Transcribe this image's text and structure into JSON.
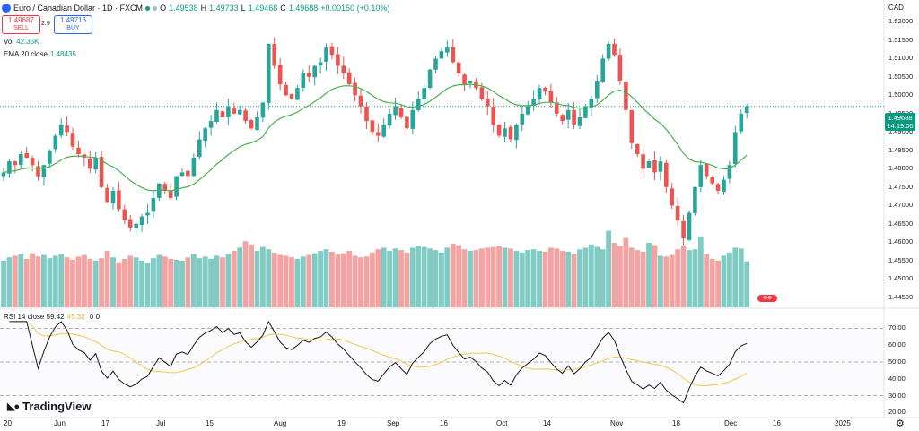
{
  "header": {
    "symbol": "Euro / Canadian Dollar · 1D · FXCM",
    "open_label": "O",
    "open": "1.49538",
    "high_label": "H",
    "high": "1.49733",
    "low_label": "L",
    "low": "1.49468",
    "close_label": "C",
    "close": "1.49688",
    "change": "+0.00150 (+0.10%)"
  },
  "trade": {
    "sell_price": "1.49687",
    "sell_label": "SELL",
    "spread": "2.9",
    "buy_price": "1.49716",
    "buy_label": "BUY"
  },
  "indicators": {
    "vol_label": "Vol",
    "vol_value": "42.35K",
    "ema_label": "EMA 20 close",
    "ema_value": "1.48435",
    "rsi_label": "RSI 14 close",
    "rsi_value": "59.42",
    "rsi_ma_value": "45.32",
    "rsi_extra": "0 0"
  },
  "price_axis": {
    "currency": "CAD",
    "ticks": [
      "1.52000",
      "1.51500",
      "1.51000",
      "1.50500",
      "1.50000",
      "1.49500",
      "1.49000",
      "1.48500",
      "1.48000",
      "1.47500",
      "1.47000",
      "1.46500",
      "1.46000",
      "1.45500",
      "1.45000",
      "1.44500"
    ],
    "last_price": "1.49688",
    "countdown": "14:19:00"
  },
  "rsi_axis": {
    "ticks": [
      "70.00",
      "60.00",
      "50.00",
      "40.00",
      "30.00",
      "20.00"
    ]
  },
  "time_axis": {
    "labels": [
      "20",
      "Jun",
      "17",
      "Jul",
      "15",
      "Aug",
      "19",
      "Sep",
      "16",
      "Oct",
      "14",
      "Nov",
      "18",
      "Dec",
      "16",
      "2025"
    ]
  },
  "branding": {
    "name": "TradingView"
  },
  "colors": {
    "up": "#26a69a",
    "down": "#ef5350",
    "ema": "#4caf50",
    "rsi": "#131722",
    "rsi_ma": "#f2c94c",
    "vol_up": "#80cbc4",
    "vol_down": "#f4a3a3"
  },
  "chart_data": {
    "type": "candlestick",
    "title": "Euro / Canadian Dollar · 1D · FXCM",
    "ylim": [
      1.443,
      1.524
    ],
    "ema_period": 20,
    "closes": [
      1.479,
      1.482,
      1.481,
      1.484,
      1.483,
      1.481,
      1.478,
      1.481,
      1.485,
      1.489,
      1.492,
      1.49,
      1.486,
      1.484,
      1.483,
      1.48,
      1.483,
      1.475,
      1.471,
      1.474,
      1.469,
      1.466,
      1.464,
      1.465,
      1.467,
      1.468,
      1.472,
      1.476,
      1.474,
      1.472,
      1.478,
      1.479,
      1.478,
      1.483,
      1.488,
      1.491,
      1.493,
      1.496,
      1.494,
      1.497,
      1.495,
      1.496,
      1.493,
      1.491,
      1.494,
      1.498,
      1.514,
      1.508,
      1.503,
      1.5,
      1.499,
      1.502,
      1.506,
      1.505,
      1.508,
      1.509,
      1.513,
      1.511,
      1.508,
      1.506,
      1.503,
      1.5,
      1.497,
      1.493,
      1.49,
      1.489,
      1.492,
      1.495,
      1.497,
      1.494,
      1.491,
      1.496,
      1.499,
      1.502,
      1.507,
      1.51,
      1.512,
      1.513,
      1.509,
      1.506,
      1.503,
      1.504,
      1.502,
      1.499,
      1.497,
      1.492,
      1.489,
      1.491,
      1.488,
      1.492,
      1.495,
      1.497,
      1.499,
      1.502,
      1.501,
      1.498,
      1.495,
      1.493,
      1.496,
      1.492,
      1.494,
      1.497,
      1.499,
      1.504,
      1.51,
      1.514,
      1.511,
      1.504,
      1.496,
      1.487,
      1.484,
      1.48,
      1.482,
      1.479,
      1.482,
      1.475,
      1.47,
      1.466,
      1.461,
      1.468,
      1.475,
      1.481,
      1.478,
      1.476,
      1.474,
      1.477,
      1.481,
      1.49,
      1.495,
      1.497
    ],
    "volumes": [
      58,
      62,
      64,
      66,
      60,
      67,
      63,
      65,
      61,
      64,
      66,
      62,
      59,
      63,
      65,
      60,
      58,
      61,
      70,
      62,
      56,
      60,
      64,
      62,
      58,
      55,
      61,
      65,
      63,
      60,
      59,
      58,
      62,
      66,
      61,
      63,
      60,
      64,
      62,
      66,
      70,
      74,
      82,
      78,
      70,
      75,
      72,
      68,
      65,
      64,
      62,
      60,
      63,
      65,
      67,
      70,
      72,
      69,
      66,
      67,
      70,
      64,
      62,
      63,
      68,
      72,
      74,
      70,
      73,
      71,
      68,
      74,
      76,
      75,
      73,
      71,
      68,
      74,
      79,
      77,
      72,
      70,
      71,
      73,
      74,
      75,
      76,
      74,
      73,
      70,
      68,
      71,
      72,
      70,
      69,
      74,
      73,
      70,
      69,
      66,
      72,
      74,
      78,
      75,
      72,
      95,
      80,
      76,
      86,
      74,
      71,
      69,
      80,
      77,
      64,
      63,
      65,
      72,
      76,
      71,
      72,
      88,
      66,
      60,
      58,
      64,
      68,
      74,
      73,
      57
    ]
  }
}
